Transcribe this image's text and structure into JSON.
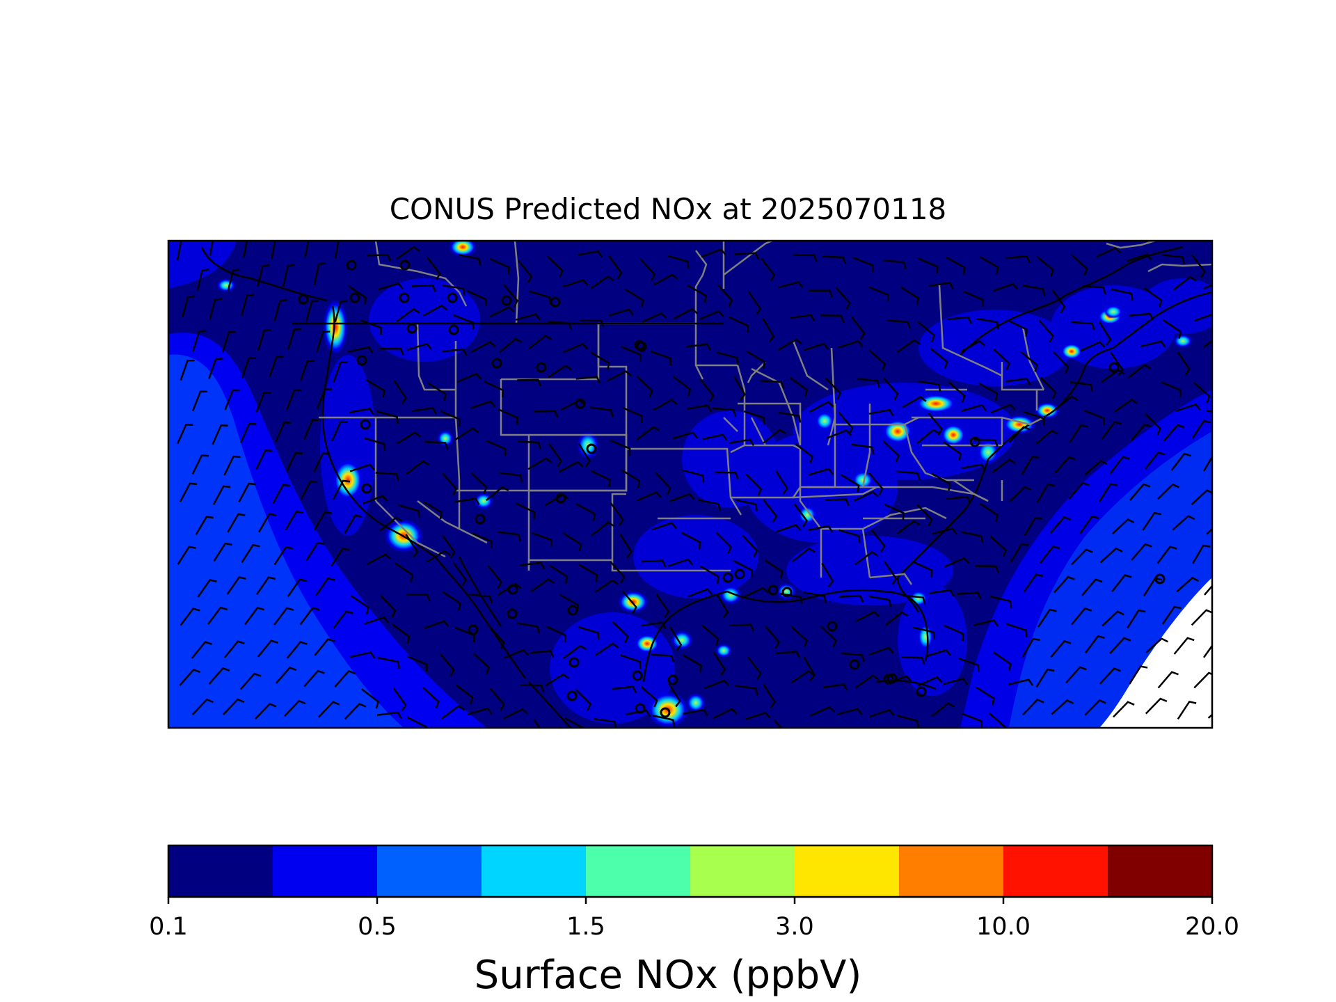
{
  "title": "CONUS Predicted NOx at 2025070118",
  "colorbar": {
    "label": "Surface NOx (ppbV)",
    "colors": [
      "#000080",
      "#0000f1",
      "#0061ff",
      "#00d5ff",
      "#4dffaa",
      "#a8ff4e",
      "#ffe600",
      "#ff7e00",
      "#ff1300",
      "#800000"
    ],
    "tick_labels": [
      "0.1",
      "0.5",
      "1.5",
      "3.0",
      "10.0",
      "20.0"
    ]
  },
  "map": {
    "boundary_colors": {
      "coastline": "#000000",
      "state_lines": "#808080",
      "wind_barbs": "#000000"
    },
    "layers": [
      "surface NOx concentration",
      "state boundaries",
      "coastlines",
      "wind barbs",
      "station circles"
    ]
  }
}
